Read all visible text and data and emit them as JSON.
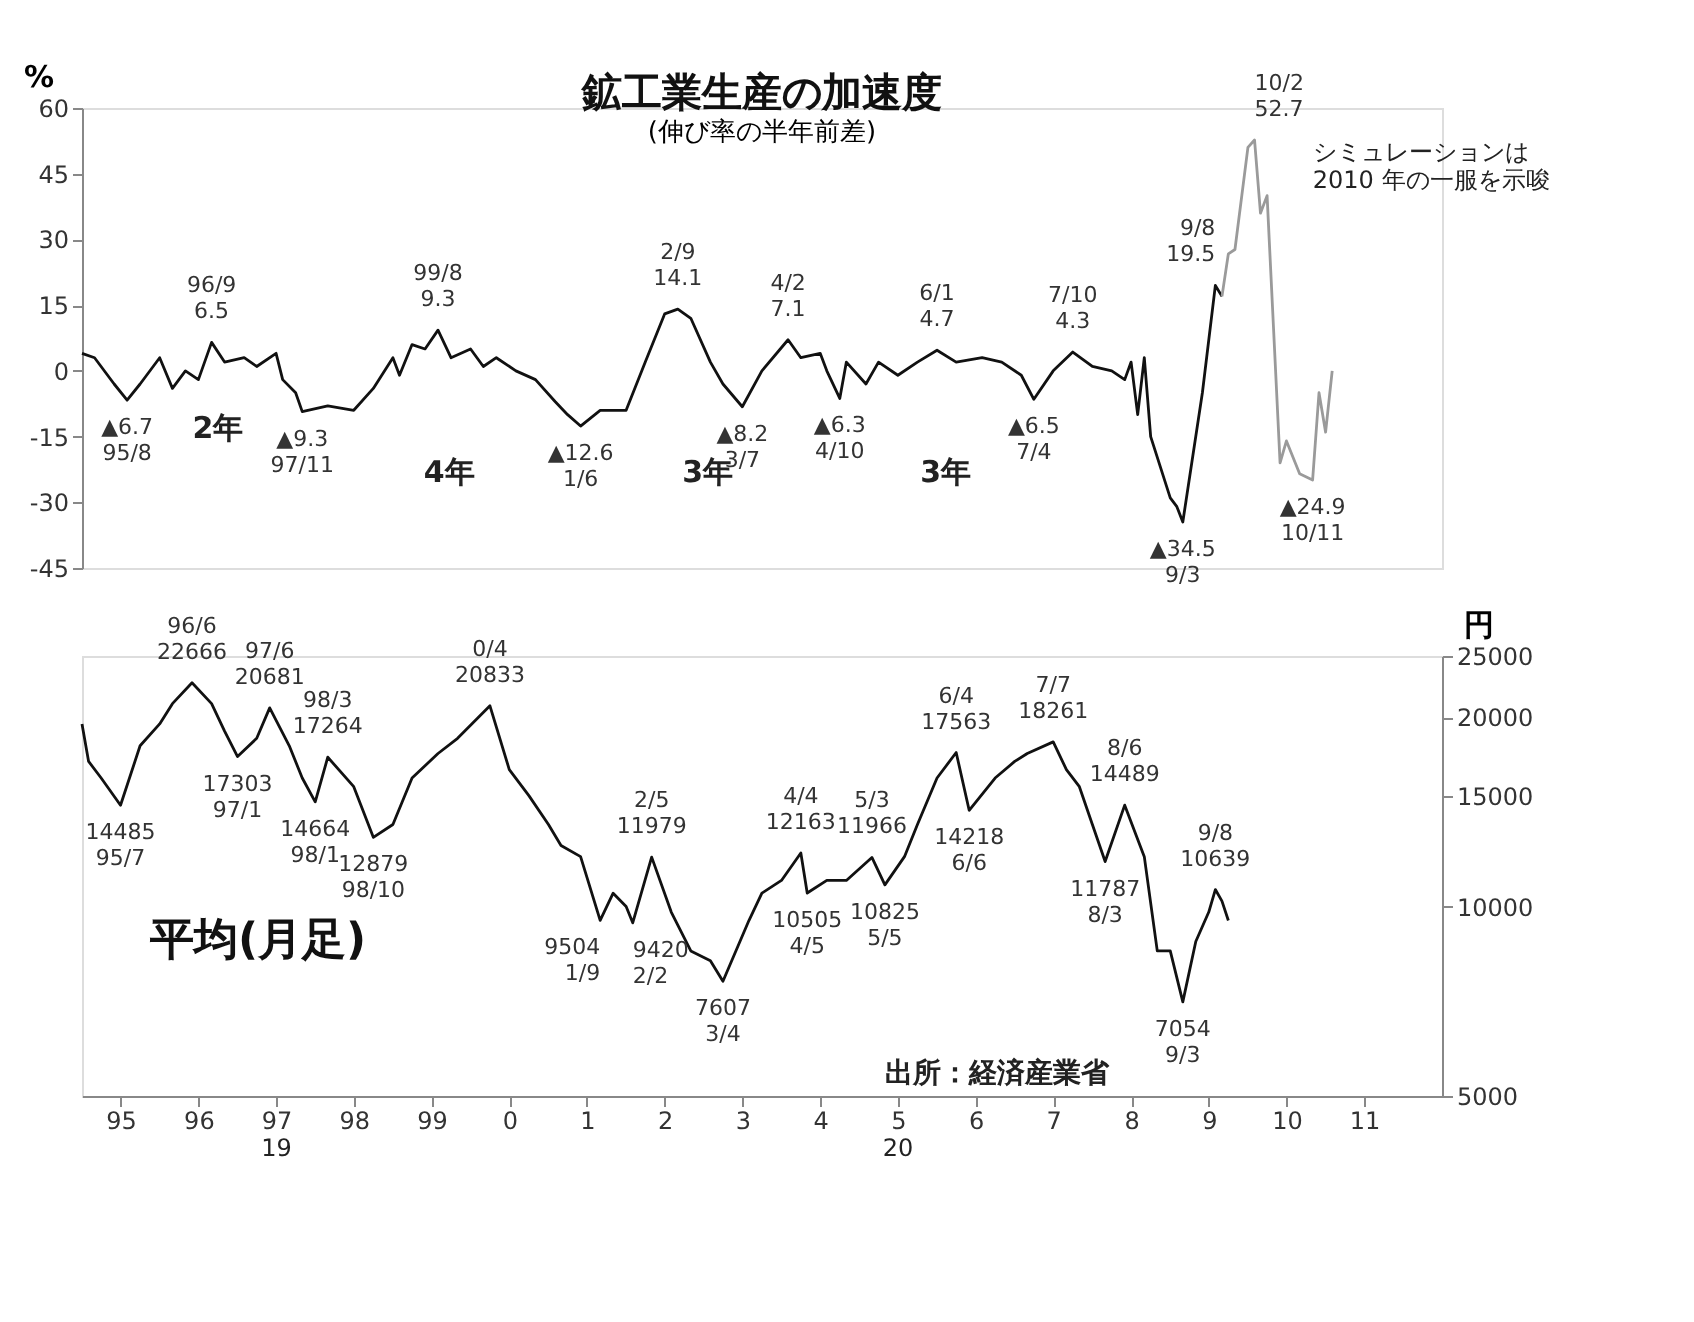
{
  "chart_data": [
    {
      "type": "line",
      "title": "鉱工業生産の加速度",
      "subtitle": "(伸び率の半年前差)",
      "ylabel": "%",
      "xlim": [
        "1995-01",
        "2012-07"
      ],
      "ylim": [
        -45,
        60
      ],
      "yticks": [
        -45,
        -30,
        -15,
        0,
        15,
        30,
        45,
        60
      ],
      "tick_labels": "y",
      "grid": false,
      "series": [
        {
          "color": "#111111",
          "x": [
            "1995-01",
            "1995-03",
            "1995-06",
            "1995-08",
            "1995-10",
            "1996-01",
            "1996-03",
            "1996-05",
            "1996-07",
            "1996-09",
            "1996-11",
            "1997-02",
            "1997-04",
            "1997-07",
            "1997-08",
            "1997-10",
            "1997-11",
            "1998-03",
            "1998-07",
            "1998-10",
            "1999-01",
            "1999-02",
            "1999-04",
            "1999-06",
            "1999-08",
            "1999-10",
            "2000-01",
            "2000-03",
            "2000-05",
            "2000-08",
            "2000-11",
            "2001-02",
            "2001-04",
            "2001-06",
            "2001-09",
            "2002-01",
            "2002-04",
            "2002-07",
            "2002-09",
            "2002-11",
            "2003-02",
            "2003-04",
            "2003-07",
            "2003-10",
            "2004-02",
            "2004-04",
            "2004-07",
            "2004-08",
            "2004-10",
            "2004-11",
            "2005-02",
            "2005-04",
            "2005-07",
            "2005-10",
            "2006-01",
            "2006-04",
            "2006-08",
            "2006-11",
            "2007-02",
            "2007-04",
            "2007-07",
            "2007-10",
            "2008-01",
            "2008-04",
            "2008-06",
            "2008-07",
            "2008-08",
            "2008-09",
            "2008-10",
            "2009-01",
            "2009-02",
            "2009-03",
            "2009-06",
            "2009-08",
            "2009-09"
          ],
          "values": [
            4,
            3,
            -3,
            -6.7,
            -3,
            3,
            -4,
            0,
            -2,
            6.5,
            2,
            3,
            1,
            4,
            -2,
            -5,
            -9.3,
            -8,
            -9,
            -4,
            3,
            -1,
            6,
            5,
            9.3,
            3,
            5,
            1,
            3,
            0,
            -2,
            -7,
            -10,
            -12.6,
            -9,
            -9,
            2,
            13,
            14.1,
            12,
            2,
            -3,
            -8.2,
            0,
            7.1,
            3,
            4,
            0,
            -6.3,
            2,
            -3,
            2,
            -1,
            2,
            4.7,
            2,
            3,
            2,
            -1,
            -6.5,
            0,
            4.3,
            1,
            0,
            -2,
            2,
            -10,
            3,
            -15,
            -29,
            -31,
            -34.5,
            -5,
            19.5,
            17
          ]
        },
        {
          "color": "#9a9a9a",
          "x": [
            "2009-09",
            "2009-10",
            "2009-11",
            "2010-01",
            "2010-02",
            "2010-03",
            "2010-04",
            "2010-06",
            "2010-07",
            "2010-09",
            "2010-11",
            "2010-12",
            "2011-01",
            "2011-02"
          ],
          "values": [
            17,
            26.7,
            27.7,
            51,
            52.7,
            36,
            40,
            -21,
            -16,
            -23.5,
            -24.9,
            -5,
            -14,
            0
          ]
        }
      ],
      "annotations": [
        {
          "text": "▲6.7\n95/8",
          "x": "1995-08",
          "y": -6.7
        },
        {
          "text": "96/9\n6.5",
          "x": "1996-09",
          "y": 6.5
        },
        {
          "text": "▲9.3\n97/11",
          "x": "1997-11",
          "y": -9.3
        },
        {
          "text": "99/8\n9.3",
          "x": "1999-08",
          "y": 9.3
        },
        {
          "text": "▲12.6\n1/6",
          "x": "2001-06",
          "y": -12.6
        },
        {
          "text": "2/9\n14.1",
          "x": "2002-09",
          "y": 14.1
        },
        {
          "text": "▲8.2\n3/7",
          "x": "2003-07",
          "y": -8.2
        },
        {
          "text": "4/2\n7.1",
          "x": "2004-02",
          "y": 7.1
        },
        {
          "text": "▲6.3\n4/10",
          "x": "2004-10",
          "y": -6.3
        },
        {
          "text": "6/1\n4.7",
          "x": "2006-01",
          "y": 4.7
        },
        {
          "text": "▲6.5\n7/4",
          "x": "2007-04",
          "y": -6.5
        },
        {
          "text": "7/10\n4.3",
          "x": "2007-10",
          "y": 4.3
        },
        {
          "text": "▲34.5\n9/3",
          "x": "2009-03",
          "y": -34.5
        },
        {
          "text": "9/8\n19.5",
          "x": "2009-08",
          "y": 19.5
        },
        {
          "text": "10/2\n52.7",
          "x": "2010-02",
          "y": 52.7
        },
        {
          "text": "▲24.9\n10/11",
          "x": "2010-11",
          "y": -24.9
        },
        "2年",
        "4年",
        "3年",
        "3年",
        "シミュレーションは\n2010 年の一服を示唆"
      ]
    },
    {
      "type": "line",
      "title": "平均(月足)",
      "ylabel": "円",
      "xlim": [
        "1995-01",
        "2012-07"
      ],
      "xticks": [
        {
          "value": "1995-07",
          "label": "95"
        },
        {
          "value": "1996-07",
          "label": "96"
        },
        {
          "value": "1997-07",
          "label": "97"
        },
        {
          "value": "1998-07",
          "label": "98"
        },
        {
          "value": "1999-07",
          "label": "99"
        },
        {
          "value": "2000-07",
          "label": "0"
        },
        {
          "value": "2001-07",
          "label": "1"
        },
        {
          "value": "2002-07",
          "label": "2"
        },
        {
          "value": "2003-07",
          "label": "3"
        },
        {
          "value": "2004-07",
          "label": "4"
        },
        {
          "value": "2005-07",
          "label": "5"
        },
        {
          "value": "2006-07",
          "label": "6"
        },
        {
          "value": "2007-07",
          "label": "7"
        },
        {
          "value": "2008-07",
          "label": "8"
        },
        {
          "value": "2009-07",
          "label": "9"
        },
        {
          "value": "2010-07",
          "label": "10"
        },
        {
          "value": "2011-07",
          "label": "11"
        }
      ],
      "ylim": [
        5000,
        25000
      ],
      "yticks": [
        5000,
        10000,
        15000,
        20000,
        25000
      ],
      "log": true,
      "grid": false,
      "series": [
        {
          "color": "#111111",
          "x": [
            "1995-01",
            "1995-02",
            "1995-04",
            "1995-07",
            "1995-10",
            "1996-01",
            "1996-03",
            "1996-06",
            "1996-09",
            "1996-11",
            "1997-01",
            "1997-04",
            "1997-06",
            "1997-09",
            "1997-11",
            "1998-01",
            "1998-03",
            "1998-07",
            "1998-10",
            "1999-01",
            "1999-04",
            "1999-08",
            "1999-11",
            "2000-04",
            "2000-07",
            "2000-10",
            "2001-01",
            "2001-03",
            "2001-06",
            "2001-09",
            "2001-11",
            "2002-01",
            "2002-02",
            "2002-05",
            "2002-08",
            "2002-11",
            "2003-02",
            "2003-04",
            "2003-08",
            "2003-10",
            "2004-01",
            "2004-04",
            "2004-05",
            "2004-08",
            "2004-11",
            "2005-03",
            "2005-05",
            "2005-08",
            "2005-10",
            "2006-01",
            "2006-04",
            "2006-06",
            "2006-10",
            "2007-01",
            "2007-03",
            "2007-07",
            "2007-09",
            "2007-11",
            "2008-01",
            "2008-03",
            "2008-06",
            "2008-09",
            "2008-11",
            "2009-01",
            "2009-03",
            "2009-05",
            "2009-07",
            "2009-08",
            "2009-09",
            "2009-10"
          ],
          "values": [
            19500,
            17000,
            16000,
            14485,
            18000,
            19500,
            21000,
            22666,
            21000,
            19000,
            17303,
            18500,
            20681,
            18000,
            16000,
            14664,
            17264,
            15500,
            12879,
            13500,
            16000,
            17500,
            18500,
            20833,
            16500,
            15000,
            13500,
            12500,
            12000,
            9504,
            10500,
            10000,
            9420,
            11979,
            9800,
            8500,
            8200,
            7607,
            9500,
            10500,
            11000,
            12163,
            10505,
            11000,
            11000,
            11966,
            10825,
            12000,
            13500,
            16000,
            17563,
            14218,
            16000,
            17000,
            17500,
            18261,
            16500,
            15500,
            13500,
            11787,
            14489,
            12000,
            8500,
            8500,
            7054,
            8800,
            9800,
            10639,
            10200,
            9500
          ]
        }
      ],
      "annotations": [
        {
          "text": "14485\n95/7",
          "x": "1995-07",
          "y": 14485
        },
        {
          "text": "96/6\n22666",
          "x": "1996-06",
          "y": 22666
        },
        {
          "text": "17303\n97/1",
          "x": "1997-01",
          "y": 17303
        },
        {
          "text": "97/6\n20681",
          "x": "1997-06",
          "y": 20681
        },
        {
          "text": "14664\n98/1",
          "x": "1998-01",
          "y": 14664
        },
        {
          "text": "98/3\n17264",
          "x": "1998-03",
          "y": 17264
        },
        {
          "text": "12879\n98/10",
          "x": "1998-10",
          "y": 12879
        },
        {
          "text": "0/4\n20833",
          "x": "2000-04",
          "y": 20833
        },
        {
          "text": "9504\n1/9",
          "x": "2001-09",
          "y": 9504
        },
        {
          "text": "9420\n2/2",
          "x": "2002-02",
          "y": 9420
        },
        {
          "text": "2/5\n11979",
          "x": "2002-05",
          "y": 11979
        },
        {
          "text": "7607\n3/4",
          "x": "2003-04",
          "y": 7607
        },
        {
          "text": "4/4\n12163",
          "x": "2004-04",
          "y": 12163
        },
        {
          "text": "10505\n4/5",
          "x": "2004-05",
          "y": 10505
        },
        {
          "text": "5/3\n11966",
          "x": "2005-03",
          "y": 11966
        },
        {
          "text": "10825\n5/5",
          "x": "2005-05",
          "y": 10825
        },
        {
          "text": "6/4\n17563",
          "x": "2006-04",
          "y": 17563
        },
        {
          "text": "14218\n6/6",
          "x": "2006-06",
          "y": 14218
        },
        {
          "text": "7/7\n18261",
          "x": "2007-07",
          "y": 18261
        },
        {
          "text": "11787\n8/3",
          "x": "2008-03",
          "y": 11787
        },
        {
          "text": "8/6\n14489",
          "x": "2008-06",
          "y": 14489
        },
        {
          "text": "7054\n9/3",
          "x": "2009-03",
          "y": 7054
        },
        {
          "text": "9/8\n10639",
          "x": "2009-08",
          "y": 10639
        },
        "19",
        "20",
        "出所：経済産業省"
      ]
    }
  ]
}
